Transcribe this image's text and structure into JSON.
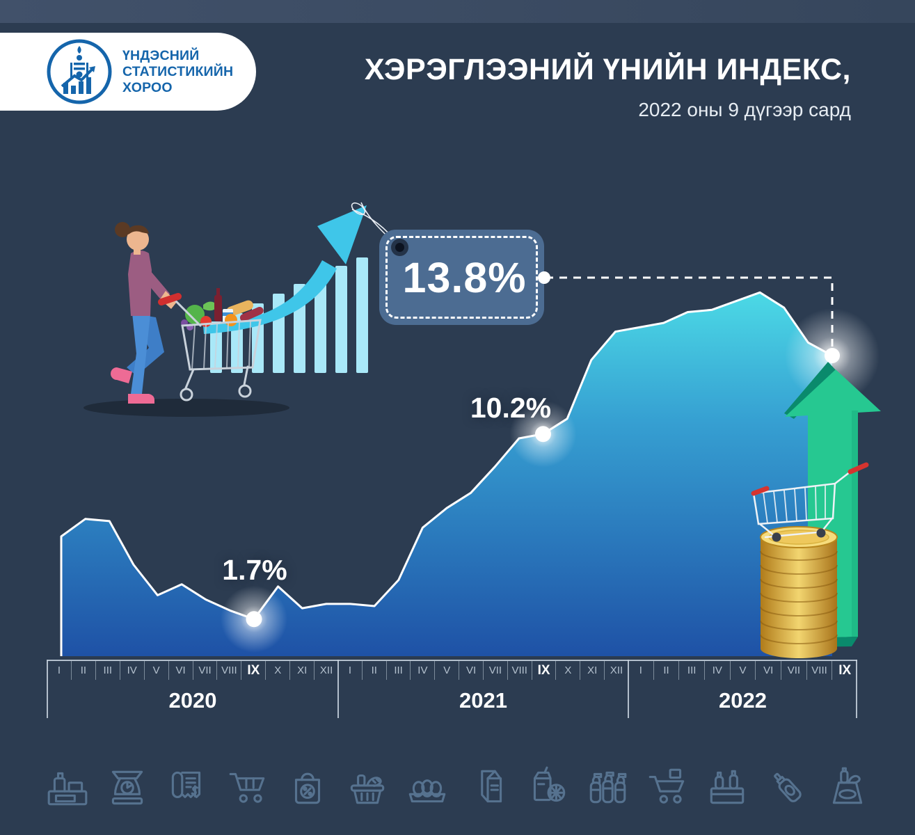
{
  "header": {
    "logo_lines": [
      "ҮНДЭСНИЙ",
      "СТАТИСТИКИЙН",
      "ХОРОО"
    ],
    "title": "ХЭРЭГЛЭЭНИЙ ҮНИЙН ИНДЕКС,",
    "subtitle": "2022 оны 9 дүгээр сард"
  },
  "chart_data": {
    "type": "area",
    "title": "ХЭРЭГЛЭЭНИЙ ҮНИЙН ИНДЕКС, 2022 оны 9 дүгээр сард",
    "unit": "%",
    "xlabel": "",
    "ylabel": "",
    "ylim": [
      0,
      18
    ],
    "grid": false,
    "legend": false,
    "years": [
      {
        "label": "2020",
        "months": [
          "I",
          "II",
          "III",
          "IV",
          "V",
          "VI",
          "VII",
          "VIII",
          "IX",
          "X",
          "XI",
          "XII"
        ],
        "highlight_month": "IX",
        "values": [
          5.5,
          6.3,
          6.2,
          4.2,
          2.8,
          3.3,
          2.6,
          2.1,
          1.7,
          3.2,
          2.2,
          2.4
        ]
      },
      {
        "label": "2021",
        "months": [
          "I",
          "II",
          "III",
          "IV",
          "V",
          "VI",
          "VII",
          "VIII",
          "IX",
          "X",
          "XI",
          "XII"
        ],
        "highlight_month": "IX",
        "values": [
          2.4,
          2.3,
          3.5,
          5.9,
          6.8,
          7.5,
          8.7,
          10.0,
          10.2,
          10.9,
          13.6,
          14.9
        ]
      },
      {
        "label": "2022",
        "months": [
          "I",
          "II",
          "III",
          "IV",
          "V",
          "VI",
          "VII",
          "VIII",
          "IX"
        ],
        "highlight_month": "IX",
        "values": [
          15.1,
          15.3,
          15.8,
          15.9,
          16.3,
          16.7,
          16.0,
          14.4,
          13.8
        ]
      }
    ],
    "annotations": [
      {
        "label": "1.7%",
        "year": "2020",
        "month": "IX",
        "value": 1.7
      },
      {
        "label": "10.2%",
        "year": "2021",
        "month": "IX",
        "value": 10.2
      },
      {
        "label": "13.8%",
        "year": "2022",
        "month": "IX",
        "value": 13.8
      }
    ]
  },
  "icons": [
    {
      "name": "dairy-products"
    },
    {
      "name": "kitchen-scale"
    },
    {
      "name": "receipt"
    },
    {
      "name": "shopping-cart"
    },
    {
      "name": "discount-bag"
    },
    {
      "name": "grocery-basket"
    },
    {
      "name": "egg-tray"
    },
    {
      "name": "milk-carton"
    },
    {
      "name": "juice-pack"
    },
    {
      "name": "water-bottles"
    },
    {
      "name": "cart-with-box"
    },
    {
      "name": "bottle-crate"
    },
    {
      "name": "sauce-bottle"
    },
    {
      "name": "grocery-bag"
    }
  ],
  "colors": {
    "background": "#2c3c51",
    "logo_blue": "#1565ab",
    "area_top": "#4cdae6",
    "area_bottom": "#1e50a5",
    "line_stroke": "#ffffff",
    "tag_fill": "#4c6c92",
    "cyan_accent": "#3fc6e9",
    "green_arrow": "#26c891",
    "green_arrow_dark": "#0a8a6c",
    "coin_gold": "#f2d570",
    "icon_stroke": "#56728f"
  }
}
